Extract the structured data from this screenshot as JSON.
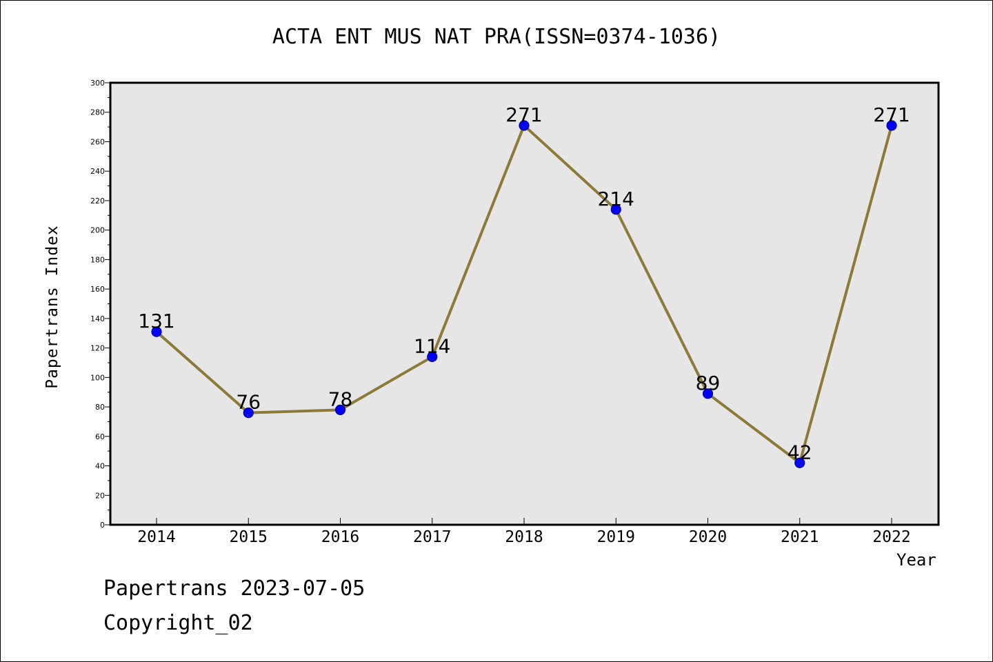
{
  "footer": {
    "date_line": "Papertrans 2023-07-05",
    "copyright": "Copyright_02"
  },
  "colors": {
    "plot_background": "#e6e6e6",
    "line": "#8c7a38",
    "marker": "#0000ff",
    "marker_edge": "#00008b"
  },
  "chart_data": {
    "type": "line",
    "title": "ACTA ENT MUS NAT PRA(ISSN=0374-1036)",
    "xlabel": "Year",
    "ylabel": "Papertrans Index",
    "categories": [
      "2014",
      "2015",
      "2016",
      "2017",
      "2018",
      "2019",
      "2020",
      "2021",
      "2022"
    ],
    "series": [
      {
        "values": [
          131,
          76,
          78,
          114,
          271,
          214,
          89,
          42,
          271
        ]
      }
    ],
    "data_labels": [
      "131",
      "76",
      "78",
      "114",
      "271",
      "214",
      "89",
      "42",
      "271"
    ],
    "ylim": [
      0,
      300
    ],
    "yticks": [
      0,
      20,
      40,
      60,
      80,
      100,
      120,
      140,
      160,
      180,
      200,
      220,
      240,
      260,
      280,
      300
    ],
    "grid": false,
    "legend": "none"
  }
}
